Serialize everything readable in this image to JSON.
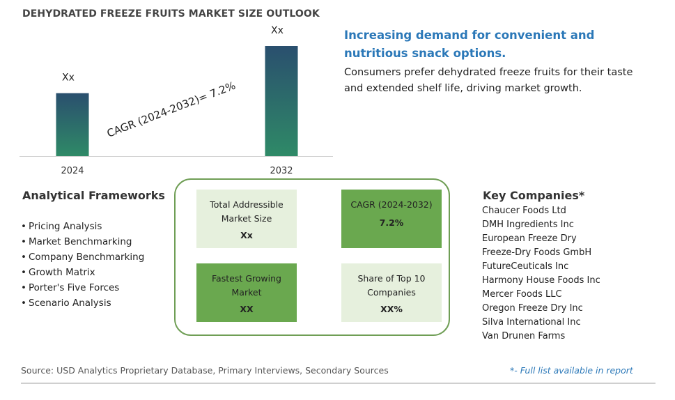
{
  "title": "DEHYDRATED FREEZE FRUITS MARKET SIZE OUTLOOK",
  "chart_data": {
    "type": "bar",
    "categories": [
      "2024",
      "2032"
    ],
    "values": [
      1.0,
      1.75
    ],
    "data_labels": [
      "Xx",
      "Xx"
    ],
    "annotation": "CAGR (2024-2032)=  7.2%",
    "colors": {
      "bar_top": "#2a4f6e",
      "bar_bottom": "#2f8a67"
    },
    "grid": false,
    "ylim": [
      0,
      1.75
    ]
  },
  "headline": "Increasing demand for convenient and nutritious snack options.",
  "subline": "Consumers prefer dehydrated freeze fruits for their taste and extended shelf life, driving market growth.",
  "frameworks": {
    "heading": "Analytical Frameworks",
    "items": [
      "Pricing Analysis",
      "Market Benchmarking",
      "Company Benchmarking",
      "Growth Matrix",
      "Porter's Five Forces",
      "Scenario Analysis"
    ]
  },
  "tiles": [
    {
      "label": "Total Addressible Market Size",
      "value": "Xx",
      "style": "light"
    },
    {
      "label": "CAGR (2024-2032)",
      "value": "7.2%",
      "style": "dark"
    },
    {
      "label": "Fastest Growing Market",
      "value": "XX",
      "style": "dark"
    },
    {
      "label": "Share of Top 10 Companies",
      "value": "XX%",
      "style": "light"
    }
  ],
  "key_companies": {
    "heading": "Key Companies*",
    "items": [
      "Chaucer Foods Ltd",
      "DMH Ingredients Inc",
      "European Freeze Dry",
      "Freeze-Dry Foods GmbH",
      "FutureCeuticals Inc",
      "Harmony House Foods Inc",
      "Mercer Foods LLC",
      "Oregon Freeze Dry Inc",
      "Silva International Inc",
      "Van Drunen Farms"
    ]
  },
  "footer": {
    "source": "Source: USD Analytics Proprietary Database, Primary Interviews, Secondary Sources",
    "note": "*- Full list available in report"
  }
}
